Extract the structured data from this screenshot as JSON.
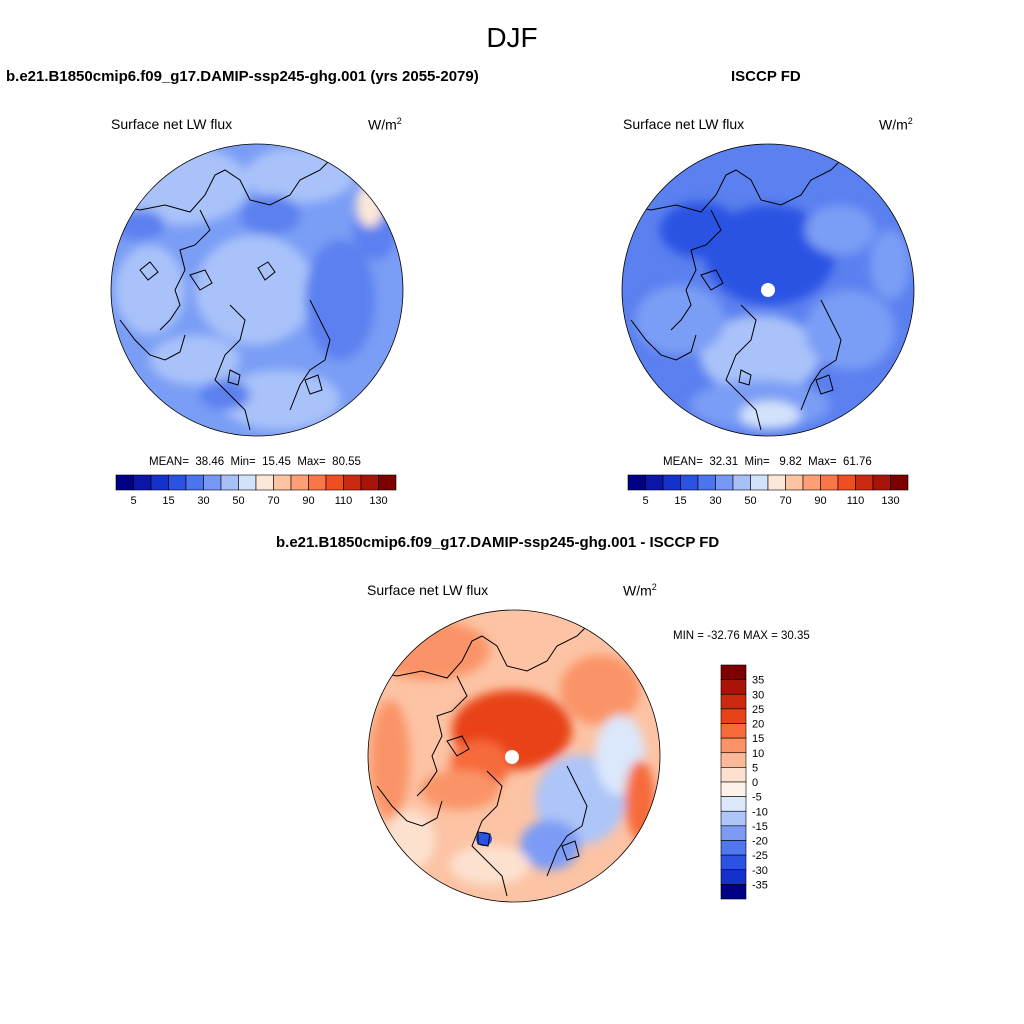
{
  "title": "DJF",
  "panels": [
    {
      "title": "b.e21.B1850cmip6.f09_g17.DAMIP-ssp245-ghg.001 (yrs 2055-2079)",
      "variable": "Surface net LW flux",
      "units_base": "W/m",
      "units_exp": "2",
      "stats": {
        "mean_label": "MEAN=",
        "mean": "38.46",
        "min_label": "Min=",
        "min": "15.45",
        "max_label": "Max=",
        "max": "80.55"
      },
      "pole_hole": false
    },
    {
      "title": "ISCCP FD",
      "variable": "Surface net LW flux",
      "units_base": "W/m",
      "units_exp": "2",
      "stats": {
        "mean_label": "MEAN=",
        "mean": "32.31",
        "min_label": "Min=",
        "min": "9.82",
        "max_label": "Max=",
        "max": "61.76"
      },
      "pole_hole": true
    }
  ],
  "diff_panel": {
    "title": "b.e21.B1850cmip6.f09_g17.DAMIP-ssp245-ghg.001 - ISCCP FD",
    "variable": "Surface net LW flux",
    "units_base": "W/m",
    "units_exp": "2",
    "minmax": "MIN = -32.76 MAX =  30.35",
    "pole_hole": true
  },
  "colorbar_main": {
    "tick_labels": [
      "5",
      "15",
      "30",
      "50",
      "70",
      "90",
      "110",
      "130"
    ],
    "colors": [
      "#000085",
      "#0a17a8",
      "#1431cb",
      "#2a52e3",
      "#4d74f0",
      "#7898f5",
      "#a8bff8",
      "#d3e2fb",
      "#fde7d8",
      "#fdc3a3",
      "#fc9e76",
      "#fa7548",
      "#f04d21",
      "#cc2a10",
      "#a81408",
      "#7d0000"
    ]
  },
  "colorbar_diff": {
    "tick_labels": [
      "35",
      "30",
      "25",
      "20",
      "15",
      "10",
      "5",
      "0",
      "-5",
      "-10",
      "-15",
      "-20",
      "-25",
      "-30",
      "-35"
    ],
    "colors": [
      "#7d0000",
      "#a81408",
      "#cc2a10",
      "#e84218",
      "#f76a3a",
      "#fa9468",
      "#fcb99a",
      "#fde1cf",
      "#fdf2ea",
      "#dbe7fb",
      "#adc5f8",
      "#7d9bf5",
      "#5076f0",
      "#2a52e3",
      "#1431cb",
      "#000085"
    ]
  }
}
